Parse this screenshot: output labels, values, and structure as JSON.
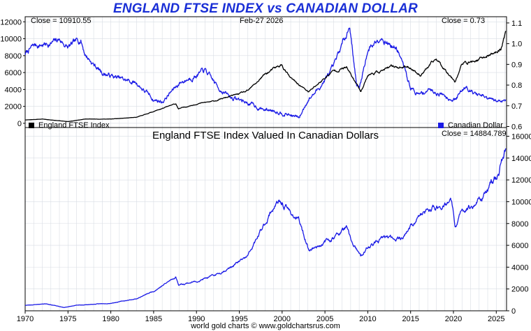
{
  "title": "ENGLAND FTSE INDEX vs CANADIAN DOLLAR",
  "footer": "world gold charts © www.goldchartsrus.com",
  "colors": {
    "title": "#1a2fd6",
    "ftse": "#000000",
    "cad": "#1a1ae6",
    "grid": "#d8dde4"
  },
  "chart_data": [
    {
      "type": "line",
      "date_label": "Feb-27  2026",
      "close_left": "Close = 10910.55",
      "close_right": "Close = 0.73",
      "x_range": [
        1970,
        2026.2
      ],
      "left_axis": {
        "ylim": [
          -500,
          12600
        ],
        "ticks": [
          0,
          2000,
          4000,
          6000,
          8000,
          10000,
          12000
        ]
      },
      "right_axis": {
        "ylim": [
          0.595,
          1.13
        ],
        "ticks": [
          0.6,
          0.7,
          0.8,
          0.9,
          1.0,
          1.1
        ],
        "tick_labels": [
          "0.6",
          "0.7",
          "0.8",
          "0.9",
          "1.0",
          "1.1"
        ]
      },
      "series": [
        {
          "name": "England FTSE Index",
          "axis": "left",
          "color": "#000000",
          "x": [
            1970,
            1972,
            1974,
            1975,
            1977,
            1980,
            1983,
            1985,
            1987.6,
            1987.9,
            1990,
            1992,
            1994,
            1996,
            1998,
            1999.9,
            2001,
            2003.1,
            2004,
            2006,
            2007.5,
            2009.2,
            2010,
            2013,
            2015,
            2016.1,
            2018,
            2020.2,
            2021,
            2023,
            2024.5,
            2025.5,
            2026.1
          ],
          "y": [
            400,
            500,
            300,
            200,
            500,
            500,
            700,
            1400,
            2300,
            1700,
            2300,
            2600,
            3200,
            3800,
            5800,
            6900,
            5300,
            3700,
            4500,
            6200,
            6600,
            3800,
            5700,
            6700,
            6600,
            5700,
            7600,
            5000,
            7000,
            7500,
            8200,
            8700,
            10910
          ]
        },
        {
          "name": "Canadian Dollar",
          "axis": "right",
          "color": "#1a1ae6",
          "x": [
            1970,
            1971,
            1973,
            1974,
            1975,
            1976.5,
            1977,
            1978,
            1979,
            1981,
            1983,
            1985,
            1986,
            1988,
            1991,
            1992.5,
            1994,
            1995,
            1998,
            1999,
            2000,
            2002,
            2003,
            2004,
            2006,
            2007.5,
            2007.9,
            2008.7,
            2009,
            2010,
            2011.5,
            2012.5,
            2013.5,
            2015,
            2016,
            2017,
            2018.5,
            2020.2,
            2021.5,
            2022.5,
            2024,
            2025,
            2026.1
          ],
          "y": [
            0.95,
            0.99,
            1.0,
            1.02,
            0.98,
            1.02,
            0.95,
            0.9,
            0.86,
            0.83,
            0.81,
            0.73,
            0.72,
            0.81,
            0.87,
            0.79,
            0.74,
            0.73,
            0.68,
            0.68,
            0.67,
            0.64,
            0.73,
            0.77,
            0.88,
            1.05,
            1.09,
            0.8,
            0.78,
            0.97,
            1.04,
            1.0,
            0.97,
            0.79,
            0.75,
            0.78,
            0.76,
            0.73,
            0.8,
            0.76,
            0.73,
            0.72,
            0.73
          ]
        }
      ],
      "legend": [
        "England FTSE Index",
        "Canadian Dollar"
      ]
    },
    {
      "type": "line",
      "title": "England FTSE Index Valued In Canadian Dollars",
      "close": "Close = 14884.789",
      "x_range": [
        1970,
        2026.2
      ],
      "ylim": [
        0,
        16800
      ],
      "y_ticks": [
        0,
        2000,
        4000,
        6000,
        8000,
        10000,
        12000,
        14000,
        16000
      ],
      "x_ticks": [
        1970,
        1975,
        1980,
        1985,
        1990,
        1995,
        2000,
        2005,
        2010,
        2015,
        2020,
        2025
      ],
      "series": [
        {
          "color": "#1a1ae6",
          "x": [
            1970,
            1972.5,
            1974.5,
            1976,
            1978,
            1980,
            1983,
            1985,
            1987.6,
            1987.9,
            1990,
            1992,
            1994,
            1996,
            1998,
            1999.2,
            2000,
            2001,
            2002,
            2003.1,
            2004,
            2006,
            2007.5,
            2008,
            2009.2,
            2010,
            2012,
            2014,
            2016,
            2018,
            2019.8,
            2020.2,
            2021,
            2022.5,
            2024,
            2025.3,
            2026.1
          ],
          "y": [
            500,
            650,
            300,
            500,
            600,
            700,
            1100,
            1800,
            3100,
            2400,
            2700,
            3200,
            4000,
            5000,
            8000,
            9800,
            9800,
            9000,
            8200,
            5600,
            5900,
            6700,
            7600,
            6500,
            4900,
            5800,
            6700,
            6700,
            8700,
            9500,
            10000,
            7600,
            9100,
            9800,
            11000,
            12800,
            14885
          ]
        }
      ]
    }
  ],
  "axis_labels": {
    "top_left": [
      "0",
      "2000",
      "4000",
      "6000",
      "8000",
      "10000",
      "12000"
    ],
    "x_years": [
      "1970",
      "1975",
      "1980",
      "1985",
      "1990",
      "1995",
      "2000",
      "2005",
      "2010",
      "2015",
      "2020",
      "2025"
    ]
  }
}
